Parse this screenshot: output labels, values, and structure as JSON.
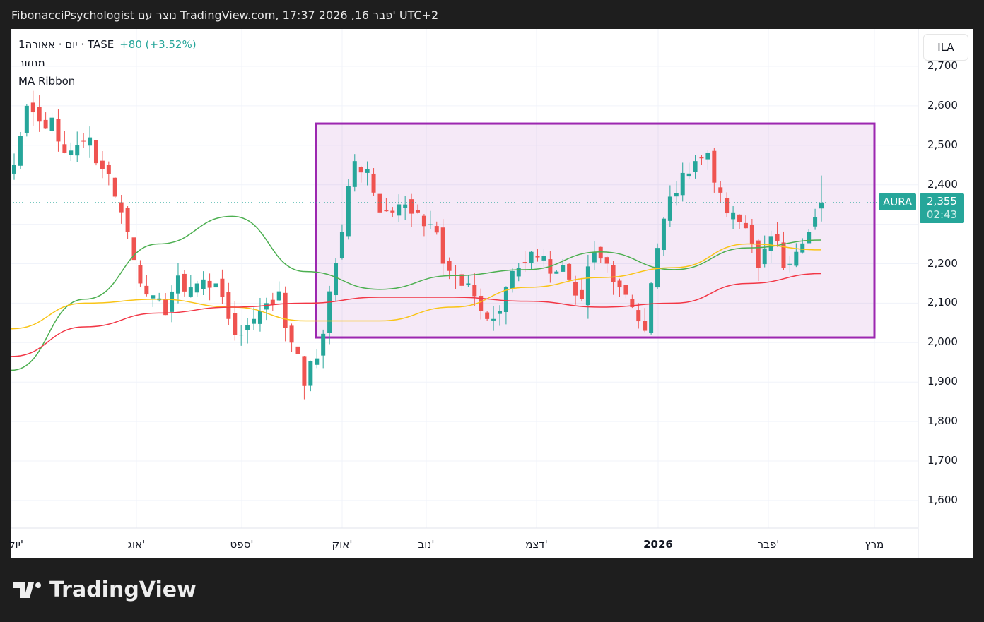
{
  "header": {
    "title": "FibonacciPsychologist נוצר עם TradingView.com, 17:37 2026 ,16 פבר' UTC+2"
  },
  "legend": {
    "symbol_line": "1יום · אאורה · TASE",
    "change": "+80 (+3.52%)",
    "volume": "מחזור",
    "indicator": "MA Ribbon"
  },
  "currency": "ILA",
  "price_label": {
    "symbol": "AURA",
    "price": "2,355",
    "countdown": "02:43"
  },
  "brand": "TradingView",
  "colors": {
    "up": "#26a69a",
    "down": "#ef5350",
    "ma_fast": "#4caf50",
    "ma_mid": "#f9c416",
    "ma_slow": "#f23645",
    "box": "#9c27b0"
  },
  "chart_data": {
    "type": "candlestick",
    "y_ticks": [
      "2,700",
      "2,600",
      "2,500",
      "2,400",
      "2,300",
      "2,200",
      "2,100",
      "2,000",
      "1,900",
      "1,800",
      "1,700",
      "1,600"
    ],
    "y_values": [
      2700,
      2600,
      2500,
      2400,
      2300,
      2200,
      2100,
      2000,
      1900,
      1800,
      1700,
      1600
    ],
    "x_ticks": [
      "יול'",
      "אוג'",
      "ספט'",
      "אוק'",
      "נוב'",
      "דצמ'",
      "2026",
      "פבר'",
      "מרץ"
    ],
    "closes": [
      2450,
      2600,
      2560,
      2570,
      2480,
      2500,
      2520,
      2440,
      2370,
      2280,
      2150,
      2120,
      2070,
      2170,
      2140,
      2160,
      2150,
      2060,
      2020,
      2060,
      2100,
      2130,
      2000,
      1890,
      1960,
      2130,
      2280,
      2460,
      2440,
      2330,
      2330,
      2350,
      2330,
      2300,
      2200,
      2170,
      2150,
      2080,
      2060,
      2140,
      2190,
      2230,
      2220,
      2180,
      2160,
      2110,
      2230,
      2200,
      2140,
      2090,
      2030,
      2240,
      2370,
      2430,
      2460,
      2480,
      2380,
      2330,
      2290,
      2190,
      2270,
      2190,
      2230,
      2280,
      2355
    ],
    "ma_fast": [
      1930,
      2110,
      2250,
      2320,
      2180,
      2135,
      2170,
      2185,
      2230,
      2185,
      2240,
      2260
    ],
    "ma_mid": [
      2035,
      2100,
      2110,
      2090,
      2055,
      2055,
      2090,
      2140,
      2165,
      2190,
      2250,
      2235
    ],
    "ma_slow": [
      1965,
      2040,
      2075,
      2090,
      2100,
      2115,
      2115,
      2105,
      2090,
      2100,
      2150,
      2175
    ],
    "last_price": 2355,
    "range_box": {
      "top": 2555,
      "bottom": 2013
    }
  }
}
